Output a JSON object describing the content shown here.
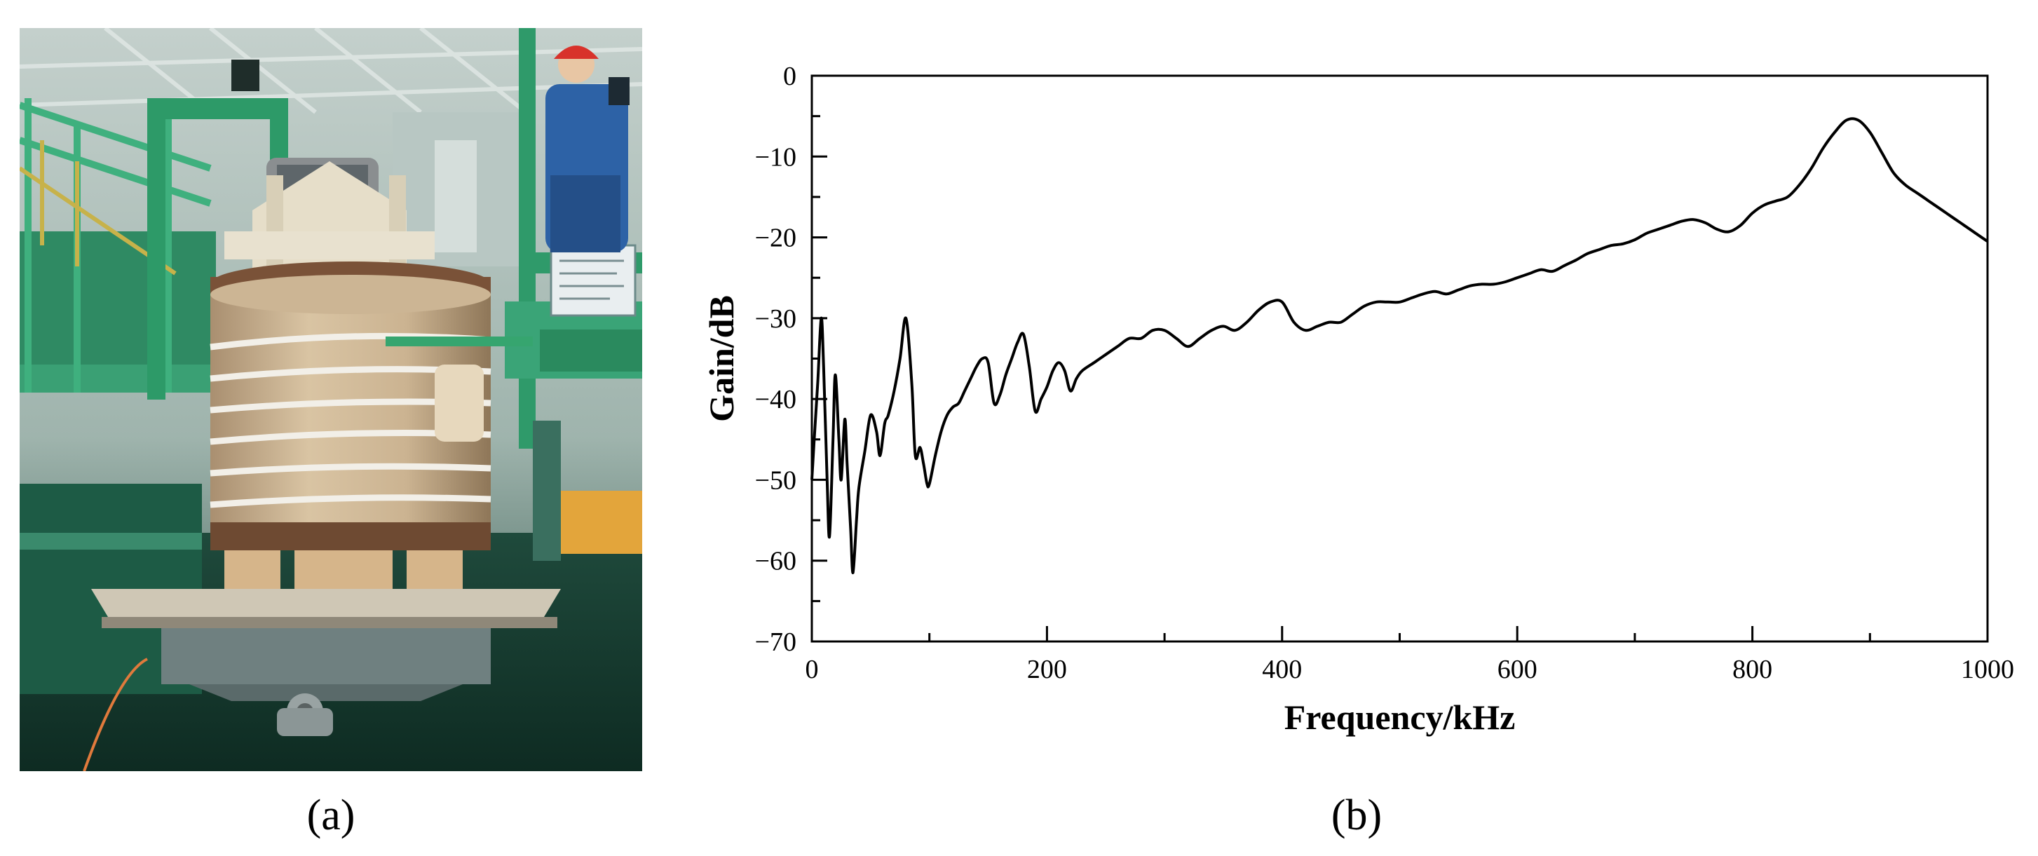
{
  "panels": {
    "a": {
      "label": "(a)"
    },
    "b": {
      "label": "(b)"
    }
  },
  "chart_data": {
    "type": "line",
    "title": "",
    "xlabel": "Frequency/kHz",
    "ylabel": "Gain/dB",
    "xlim": [
      0,
      1000
    ],
    "ylim": [
      -70,
      0
    ],
    "xticks": [
      0,
      200,
      400,
      600,
      800,
      1000
    ],
    "yticks": [
      0,
      -10,
      -20,
      -30,
      -40,
      -50,
      -60,
      -70
    ],
    "grid": false,
    "legend": "none",
    "line_color": "#000000",
    "series": [
      {
        "x": [
          0,
          2,
          5,
          8,
          10,
          13,
          15,
          18,
          20,
          23,
          25,
          28,
          30,
          33,
          35,
          38,
          40,
          45,
          50,
          55,
          58,
          62,
          65,
          70,
          75,
          80,
          85,
          88,
          92,
          95,
          98,
          100,
          105,
          110,
          115,
          120,
          125,
          130,
          135,
          140,
          145,
          150,
          155,
          160,
          165,
          170,
          175,
          180,
          185,
          190,
          195,
          200,
          205,
          210,
          215,
          220,
          225,
          230,
          240,
          250,
          260,
          270,
          280,
          290,
          300,
          310,
          320,
          330,
          340,
          350,
          360,
          370,
          380,
          390,
          400,
          410,
          420,
          430,
          440,
          450,
          460,
          470,
          480,
          490,
          500,
          510,
          520,
          530,
          540,
          550,
          560,
          570,
          580,
          590,
          600,
          610,
          620,
          630,
          640,
          650,
          660,
          670,
          680,
          690,
          700,
          710,
          720,
          730,
          740,
          750,
          760,
          770,
          780,
          790,
          800,
          810,
          820,
          830,
          840,
          850,
          860,
          870,
          880,
          890,
          900,
          910,
          920,
          930,
          940,
          950,
          960,
          970,
          980,
          990,
          1000
        ],
        "y": [
          -50,
          -45,
          -38,
          -30,
          -36,
          -50,
          -57,
          -45,
          -37,
          -45,
          -50,
          -42.5,
          -48,
          -56,
          -61.5,
          -55,
          -51,
          -46.5,
          -42,
          -44,
          -47,
          -43,
          -42,
          -39,
          -35,
          -30,
          -38,
          -47,
          -46,
          -48,
          -50.5,
          -50.5,
          -47,
          -44,
          -42,
          -41,
          -40.5,
          -39,
          -37.5,
          -36,
          -35,
          -35.5,
          -40.5,
          -39.5,
          -37,
          -35,
          -33,
          -32,
          -36,
          -41.5,
          -40,
          -38.5,
          -36.5,
          -35.5,
          -36.5,
          -39,
          -37.5,
          -36.5,
          -35.5,
          -34.5,
          -33.5,
          -32.5,
          -32.5,
          -31.5,
          -31.5,
          -32.5,
          -33.5,
          -32.5,
          -31.5,
          -31,
          -31.5,
          -30.5,
          -29,
          -28,
          -28,
          -30.5,
          -31.5,
          -31,
          -30.5,
          -30.5,
          -29.5,
          -28.5,
          -28,
          -28,
          -28,
          -27.5,
          -27,
          -26.7,
          -27,
          -26.5,
          -26,
          -25.8,
          -25.8,
          -25.5,
          -25,
          -24.5,
          -24,
          -24.2,
          -23.5,
          -22.8,
          -22,
          -21.5,
          -21,
          -20.8,
          -20.3,
          -19.5,
          -19,
          -18.5,
          -18,
          -17.8,
          -18.2,
          -19,
          -19.3,
          -18.5,
          -17,
          -16,
          -15.5,
          -15,
          -13.5,
          -11.5,
          -9,
          -7,
          -5.5,
          -5.5,
          -7,
          -9.5,
          -12,
          -13.5,
          -14.5,
          -15.5,
          -16.5,
          -17.5,
          -18.5,
          -19.5,
          -20.5
        ]
      }
    ]
  }
}
